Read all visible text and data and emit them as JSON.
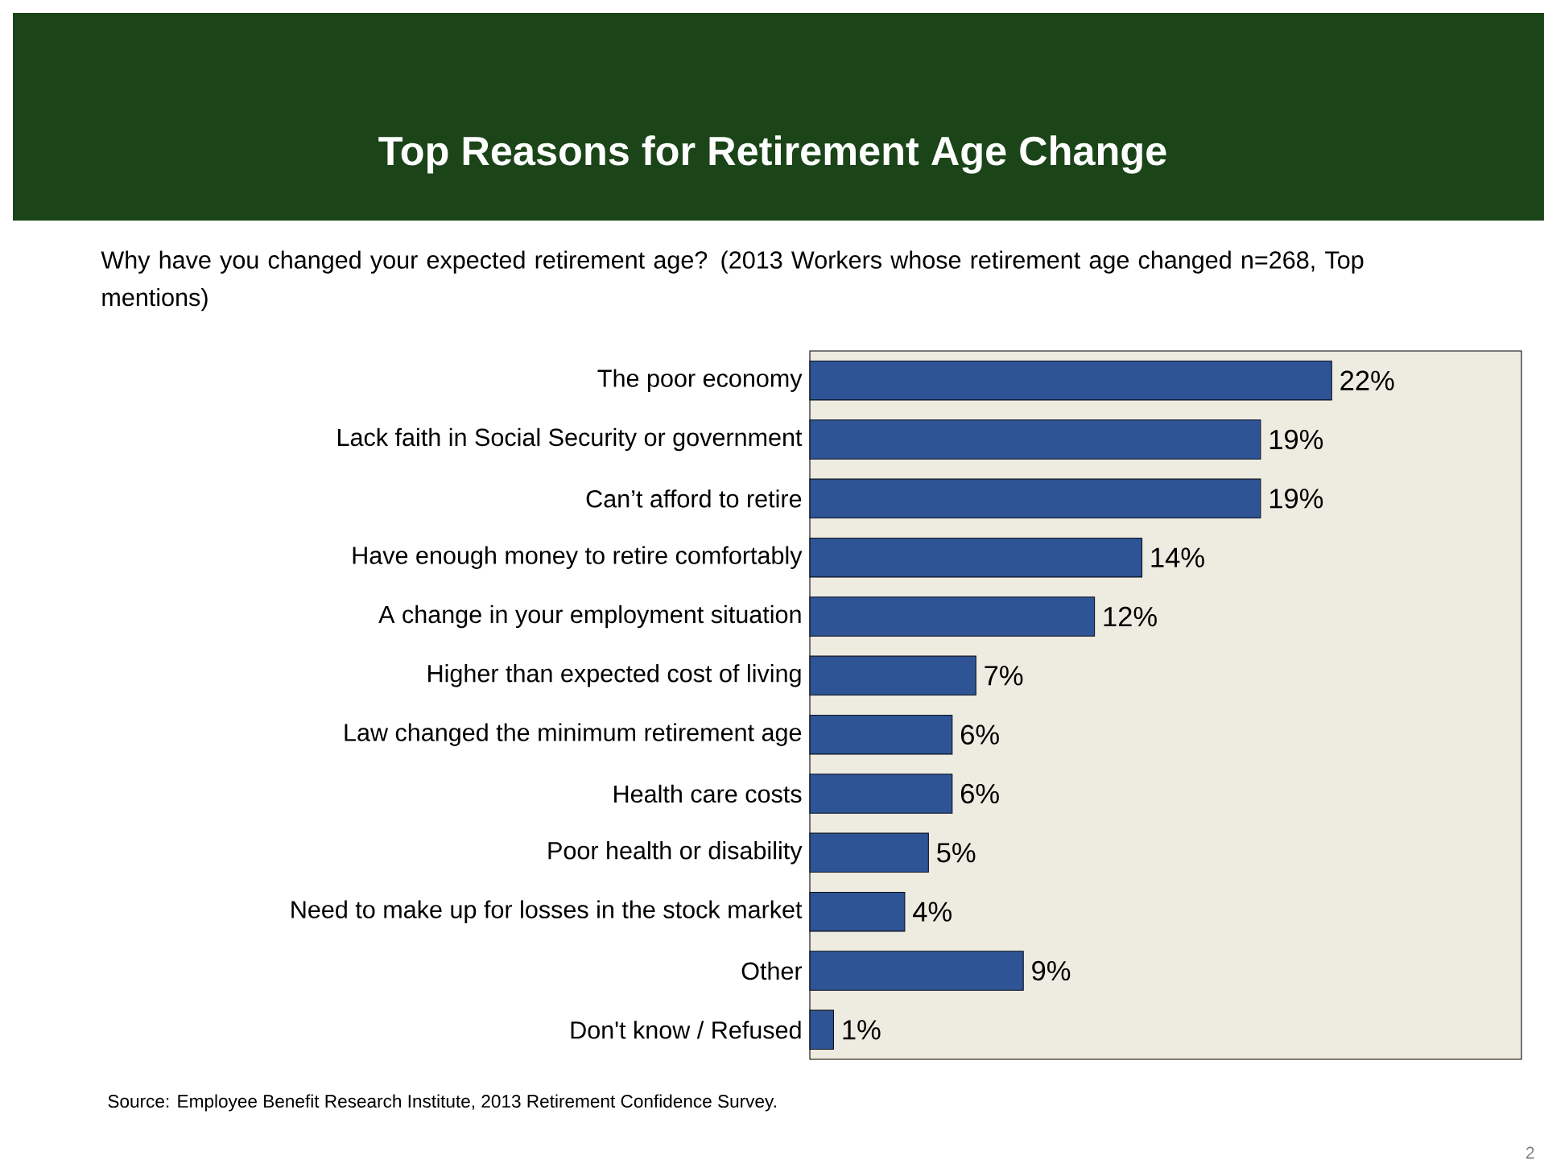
{
  "chart_data": {
    "type": "bar",
    "orientation": "horizontal",
    "title": "Top Reasons for Retirement Age Change",
    "subtitle": "Why have you changed your expected retirement age?  (2013 Workers whose retirement age changed n=268, Top mentions)",
    "categories": [
      "The poor economy",
      "Lack faith in Social Security or government",
      "Can’t afford to retire",
      "Have enough money to retire comfortably",
      "A change in your employment situation",
      "Higher than expected cost of living",
      "Law changed the minimum retirement age",
      "Health care costs",
      "Poor health or disability",
      "Need to make up for losses in the stock market",
      "Other",
      "Don't know / Refused"
    ],
    "values": [
      22,
      19,
      19,
      14,
      12,
      7,
      6,
      6,
      5,
      4,
      9,
      1
    ],
    "value_labels": [
      "22%",
      "19%",
      "19%",
      "14%",
      "12%",
      "7%",
      "6%",
      "6%",
      "5%",
      "4%",
      "9%",
      "1%"
    ],
    "color": "#2f5496",
    "xlim": [
      0,
      30
    ],
    "tick_labels": "y",
    "annotations": [
      "Source:  Employee Benefit Research Institute, 2013 Retirement Confidence Survey.",
      "2"
    ]
  }
}
